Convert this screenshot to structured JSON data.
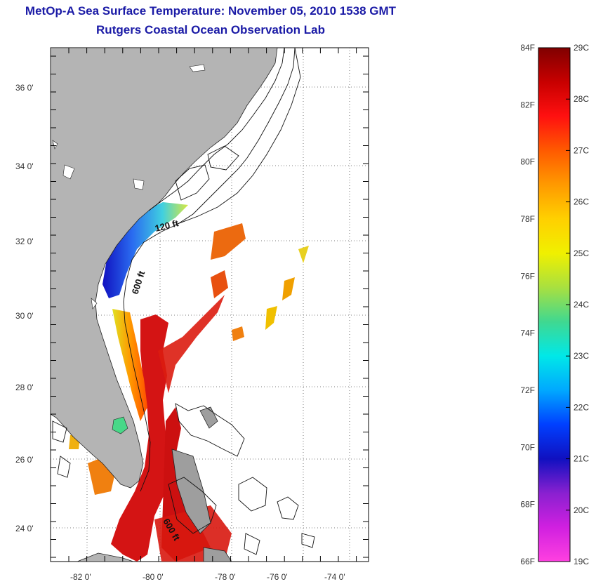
{
  "header": {
    "title": "MetOp-A Sea Surface Temperature:  November 05, 2010 1538 GMT",
    "subtitle": "Rutgers Coastal Ocean Observation Lab"
  },
  "map": {
    "lon_ticks": [
      "-82 0'",
      "-80 0'",
      "-78 0'",
      "-76 0'",
      "-74 0'"
    ],
    "lat_ticks": [
      "36 0'",
      "34 0'",
      "32 0'",
      "30 0'",
      "28 0'",
      "26 0'",
      "24 0'"
    ],
    "contour_labels": [
      "120 ft",
      "600 ft",
      "600 ft"
    ],
    "colors": {
      "land": "#b4b4b4",
      "ocean": "#ffffff",
      "gulf_stream": "#d81010",
      "nearshore_cool": "#3c6cf0",
      "nearshore_warm": "#f0d020"
    }
  },
  "colorbar": {
    "fahrenheit_labels": [
      "84F",
      "82F",
      "80F",
      "78F",
      "76F",
      "74F",
      "72F",
      "70F",
      "68F",
      "66F"
    ],
    "celsius_labels": [
      "29C",
      "28C",
      "27C",
      "26C",
      "25C",
      "24C",
      "23C",
      "22C",
      "21C",
      "20C",
      "19C"
    ],
    "gradient": [
      "#800000",
      "#c80000",
      "#ff1010",
      "#ff5a00",
      "#ff9a00",
      "#ffd000",
      "#f0f000",
      "#a8e040",
      "#40d890",
      "#00e8e8",
      "#00a8ff",
      "#0040ff",
      "#1010c0",
      "#8a20d0",
      "#d020e0",
      "#ff40e0"
    ]
  }
}
